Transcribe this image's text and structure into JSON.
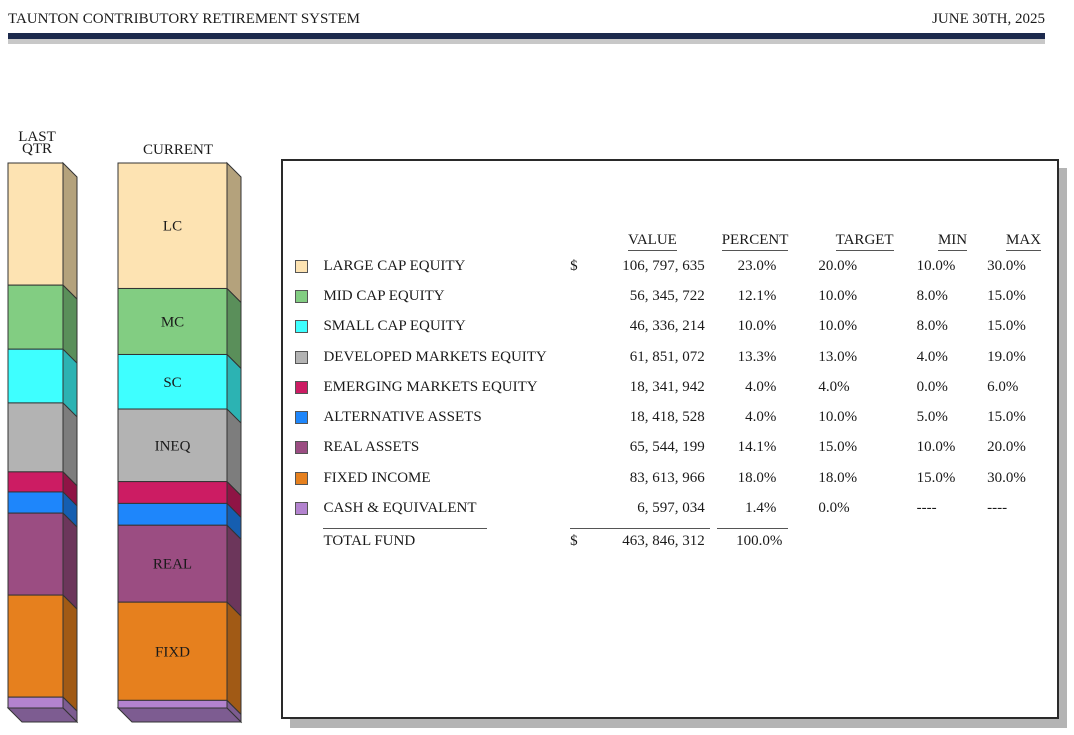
{
  "header": {
    "title": "TAUNTON CONTRIBUTORY RETIREMENT SYSTEM",
    "date": "JUNE 30TH, 2025"
  },
  "chart_data": {
    "type": "bar",
    "subtype": "stacked-100-percent-3d",
    "bars": [
      {
        "name": "last_qtr",
        "label": "LAST\nQTR",
        "label_lines": [
          "LAST",
          "QTR"
        ]
      },
      {
        "name": "current",
        "label": "CURRENT",
        "label_lines": [
          "CURRENT"
        ]
      }
    ],
    "series": [
      {
        "key": "LC",
        "name": "LARGE CAP EQUITY",
        "abbr": "LC",
        "color": "#fde3b2",
        "side": "#b4a27c",
        "last_qtr": 22.5,
        "current": 23.0
      },
      {
        "key": "MC",
        "name": "MID CAP EQUITY",
        "abbr": "MC",
        "color": "#82cd82",
        "side": "#5a8f5a",
        "last_qtr": 11.8,
        "current": 12.1
      },
      {
        "key": "SC",
        "name": "SMALL CAP EQUITY",
        "abbr": "SC",
        "color": "#3effff",
        "side": "#2cb3b3",
        "last_qtr": 9.9,
        "current": 10.0
      },
      {
        "key": "INEQ",
        "name": "DEVELOPED MARKETS EQUITY",
        "abbr": "INEQ",
        "color": "#b3b3b3",
        "side": "#7d7d7d",
        "last_qtr": 12.7,
        "current": 13.3
      },
      {
        "key": "EM",
        "name": "EMERGING MARKETS EQUITY",
        "abbr": "",
        "color": "#cc1c63",
        "side": "#8f1445",
        "last_qtr": 3.7,
        "current": 4.0
      },
      {
        "key": "ALT",
        "name": "ALTERNATIVE ASSETS",
        "abbr": "",
        "color": "#1e86fb",
        "side": "#155eb0",
        "last_qtr": 3.9,
        "current": 4.0
      },
      {
        "key": "REAL",
        "name": "REAL ASSETS",
        "abbr": "REAL",
        "color": "#9b4d82",
        "side": "#6c365b",
        "last_qtr": 15.1,
        "current": 14.1
      },
      {
        "key": "FIXD",
        "name": "FIXED INCOME",
        "abbr": "FIXD",
        "color": "#e6801e",
        "side": "#a15a15",
        "last_qtr": 18.8,
        "current": 18.0
      },
      {
        "key": "CASH",
        "name": "CASH & EQUIVALENT",
        "abbr": "",
        "color": "#b383cf",
        "side": "#7d5c91",
        "last_qtr": 2.0,
        "current": 1.4
      }
    ],
    "ylim": [
      0,
      100
    ],
    "legend": "right-table"
  },
  "table": {
    "headers": {
      "value": "VALUE",
      "percent": "PERCENT",
      "target": "TARGET",
      "min": "MIN",
      "max": "MAX"
    },
    "rows": [
      {
        "name": "LARGE CAP EQUITY",
        "dollar": "$",
        "value": "106, 797, 635",
        "percent": "23.0%",
        "target": "20.0%",
        "min": "10.0%",
        "max": "30.0%",
        "color": "#fde3b2"
      },
      {
        "name": "MID CAP EQUITY",
        "dollar": "",
        "value": "56, 345, 722",
        "percent": "12.1%",
        "target": "10.0%",
        "min": "8.0%",
        "max": "15.0%",
        "color": "#82cd82"
      },
      {
        "name": "SMALL CAP EQUITY",
        "dollar": "",
        "value": "46, 336, 214",
        "percent": "10.0%",
        "target": "10.0%",
        "min": "8.0%",
        "max": "15.0%",
        "color": "#3effff"
      },
      {
        "name": "DEVELOPED MARKETS EQUITY",
        "dollar": "",
        "value": "61, 851, 072",
        "percent": "13.3%",
        "target": "13.0%",
        "min": "4.0%",
        "max": "19.0%",
        "color": "#b3b3b3"
      },
      {
        "name": "EMERGING MARKETS EQUITY",
        "dollar": "",
        "value": "18, 341, 942",
        "percent": "4.0%",
        "target": "4.0%",
        "min": "0.0%",
        "max": "6.0%",
        "color": "#cc1c63"
      },
      {
        "name": "ALTERNATIVE ASSETS",
        "dollar": "",
        "value": "18, 418, 528",
        "percent": "4.0%",
        "target": "10.0%",
        "min": "5.0%",
        "max": "15.0%",
        "color": "#1e86fb"
      },
      {
        "name": "REAL ASSETS",
        "dollar": "",
        "value": "65, 544, 199",
        "percent": "14.1%",
        "target": "15.0%",
        "min": "10.0%",
        "max": "20.0%",
        "color": "#9b4d82"
      },
      {
        "name": "FIXED INCOME",
        "dollar": "",
        "value": "83, 613, 966",
        "percent": "18.0%",
        "target": "18.0%",
        "min": "15.0%",
        "max": "30.0%",
        "color": "#e6801e"
      },
      {
        "name": "CASH & EQUIVALENT",
        "dollar": "",
        "value": "6, 597, 034",
        "percent": "1.4%",
        "target": "0.0%",
        "min": "----",
        "max": "----",
        "color": "#b383cf"
      }
    ],
    "total": {
      "name": "TOTAL FUND",
      "dollar": "$",
      "value": "463, 846, 312",
      "percent": "100.0%"
    }
  }
}
